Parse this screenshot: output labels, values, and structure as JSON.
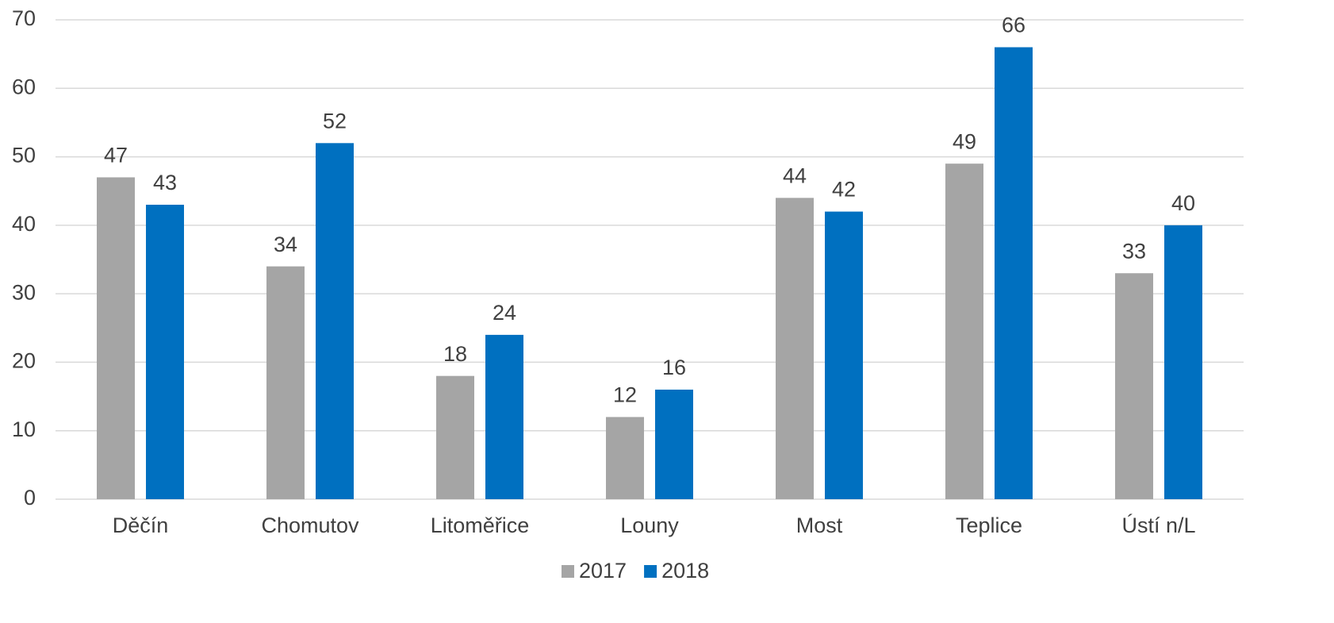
{
  "chart_data": {
    "type": "bar",
    "categories": [
      "Děčín",
      "Chomutov",
      "Litoměřice",
      "Louny",
      "Most",
      "Teplice",
      "Ústí n/L"
    ],
    "series": [
      {
        "name": "2017",
        "color": "#a5a5a5",
        "values": [
          47,
          34,
          18,
          12,
          44,
          49,
          33
        ]
      },
      {
        "name": "2018",
        "color": "#0070c0",
        "values": [
          43,
          52,
          24,
          16,
          42,
          66,
          40
        ]
      }
    ],
    "ylim": [
      0,
      70
    ],
    "yticks": [
      0,
      10,
      20,
      30,
      40,
      50,
      60,
      70
    ],
    "grid": true,
    "legend": "bottom"
  }
}
